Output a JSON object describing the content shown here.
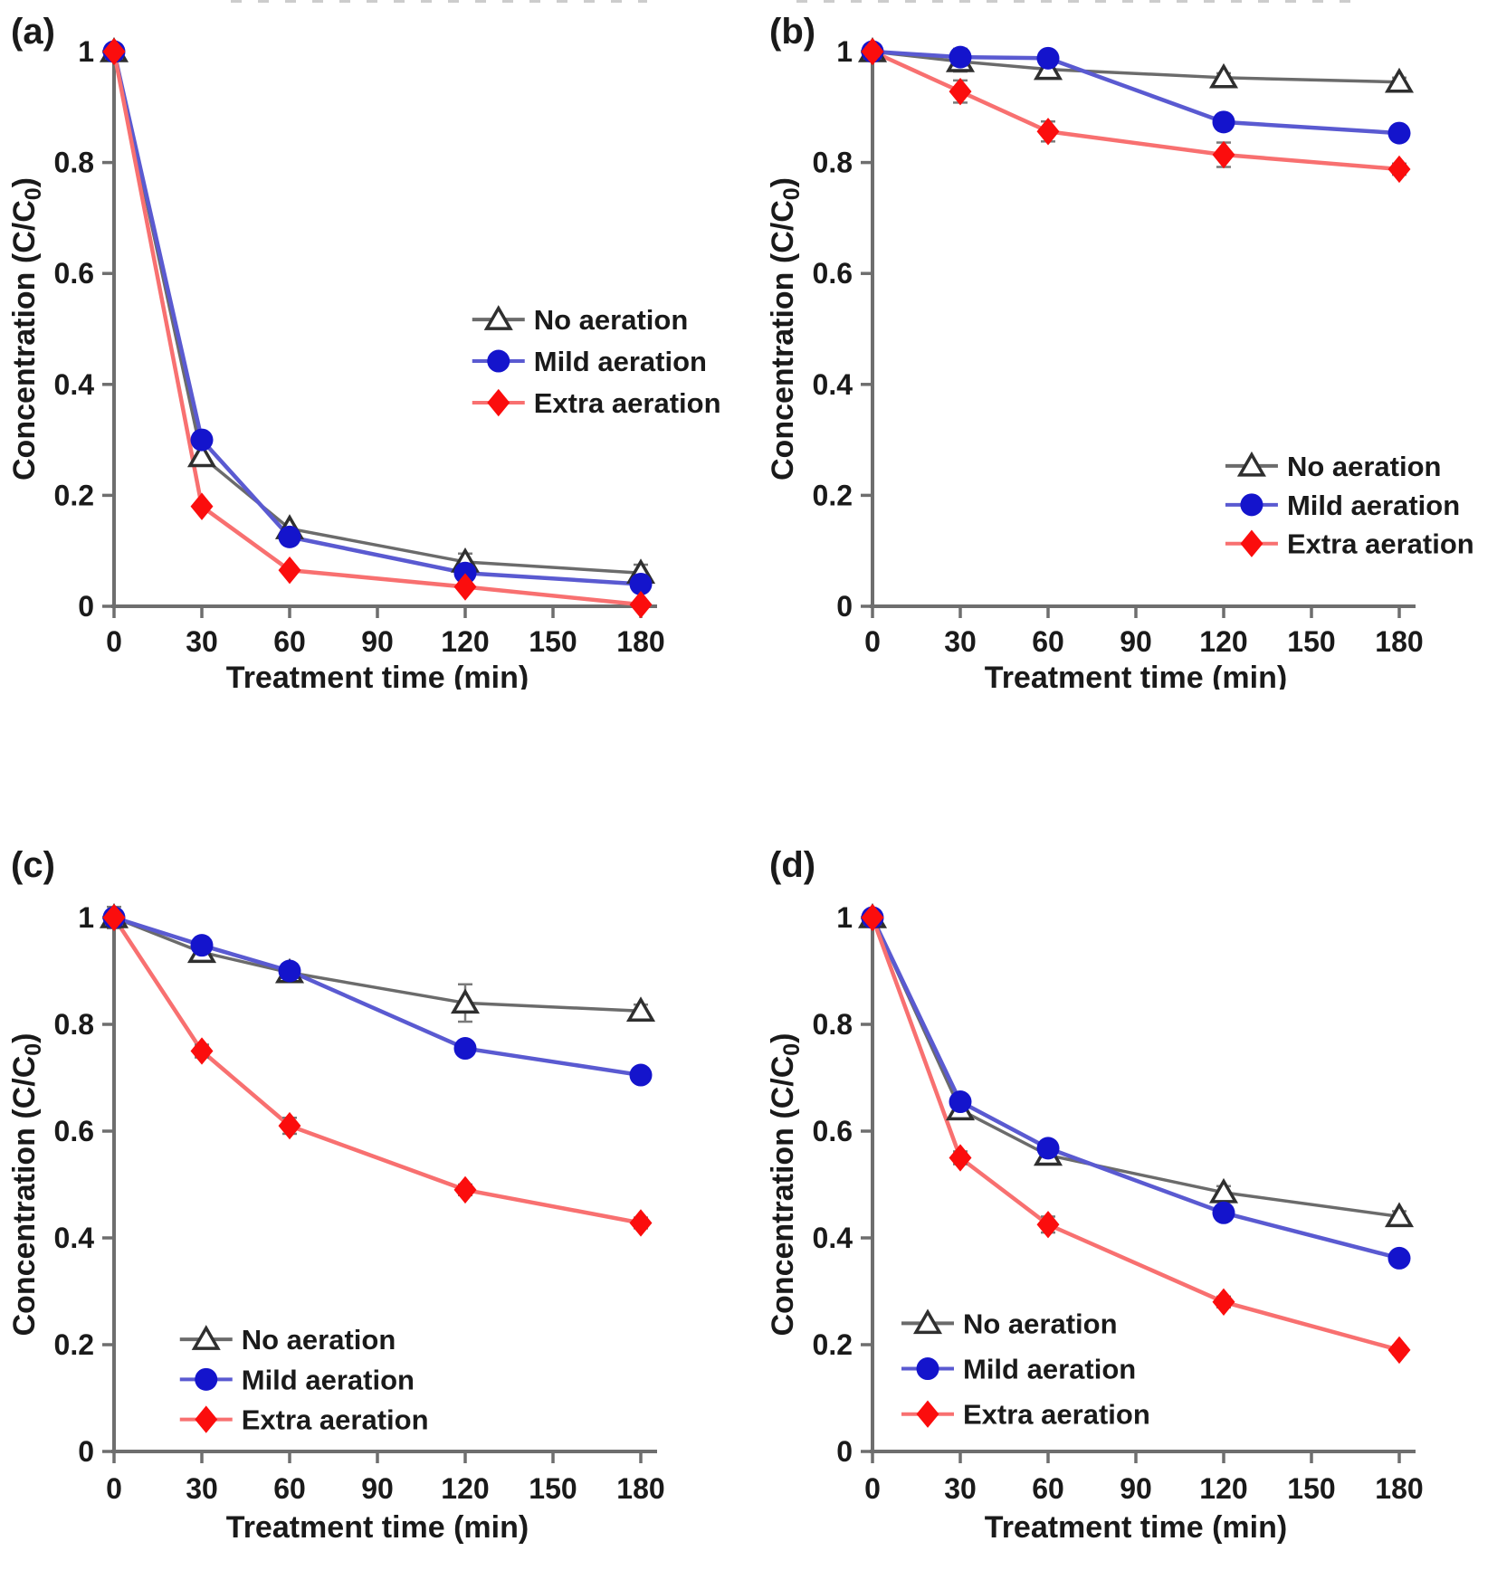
{
  "figure": {
    "background": "#ffffff",
    "text_color": "#1a1a1a",
    "axis_color": "#6e6e6e",
    "error_bar_color": "#7a7a7a",
    "series_styles": {
      "no_aeration": {
        "label": "No aeration",
        "line": "#6b6b6b",
        "line_width": 3.5,
        "marker": "triangle-open",
        "marker_fill": "#ffffff",
        "marker_stroke": "#2f2f2f"
      },
      "mild_aeration": {
        "label": "Mild aeration",
        "line": "#5a5ad1",
        "line_width": 4.5,
        "marker": "circle",
        "marker_fill": "#1414cc",
        "marker_stroke": "#1414cc"
      },
      "extra_aeration": {
        "label": "Extra aeration",
        "line": "#f87070",
        "line_width": 4.5,
        "marker": "diamond",
        "marker_fill": "#fb0d0d",
        "marker_stroke": "#fb0d0d"
      }
    }
  },
  "chart_data": [
    {
      "id": "a",
      "panel_label": "(a)",
      "type": "line",
      "xlabel": "Treatment time (min)",
      "ylabel": "Concentration (C/C0)",
      "xlim": [
        0,
        180
      ],
      "ylim": [
        0,
        1
      ],
      "xticks": [
        0,
        30,
        60,
        90,
        120,
        150,
        180
      ],
      "yticks": [
        0,
        0.2,
        0.4,
        0.6,
        0.8,
        1
      ],
      "x": [
        0,
        30,
        60,
        120,
        180
      ],
      "legend": {
        "position": "middle-right",
        "x_frac": 0.68,
        "row_fracs": [
          0.483,
          0.558,
          0.633
        ]
      },
      "series": [
        {
          "key": "no_aeration",
          "name": "No aeration",
          "values": [
            1,
            0.27,
            0.14,
            0.08,
            0.06
          ],
          "err": [
            0,
            0,
            0,
            0.015,
            0.015
          ]
        },
        {
          "key": "mild_aeration",
          "name": "Mild aeration",
          "values": [
            1,
            0.3,
            0.125,
            0.06,
            0.04
          ],
          "err": [
            0,
            0,
            0,
            0,
            0
          ]
        },
        {
          "key": "extra_aeration",
          "name": "Extra aeration",
          "values": [
            1,
            0.18,
            0.065,
            0.035,
            0.003
          ],
          "err": [
            0,
            0,
            0,
            0,
            0
          ]
        }
      ]
    },
    {
      "id": "b",
      "panel_label": "(b)",
      "type": "line",
      "xlabel": "Treatment time (min)",
      "ylabel": "Concentration (C/C0)",
      "xlim": [
        0,
        180
      ],
      "ylim": [
        0,
        1
      ],
      "xticks": [
        0,
        30,
        60,
        90,
        120,
        150,
        180
      ],
      "yticks": [
        0,
        0.2,
        0.4,
        0.6,
        0.8,
        1
      ],
      "x": [
        0,
        30,
        60,
        120,
        180
      ],
      "legend": {
        "position": "bottom-right",
        "x_frac": 0.67,
        "row_fracs": [
          0.747,
          0.817,
          0.887
        ]
      },
      "series": [
        {
          "key": "no_aeration",
          "name": "No aeration",
          "values": [
            1,
            0.982,
            0.968,
            0.953,
            0.945
          ],
          "err": [
            0.012,
            0.018,
            0.012,
            0.008,
            0.008
          ]
        },
        {
          "key": "mild_aeration",
          "name": "Mild aeration",
          "values": [
            1,
            0.99,
            0.988,
            0.873,
            0.853
          ],
          "err": [
            0.008,
            0.015,
            0.01,
            0.012,
            0.008
          ]
        },
        {
          "key": "extra_aeration",
          "name": "Extra aeration",
          "values": [
            1,
            0.928,
            0.856,
            0.814,
            0.788
          ],
          "err": [
            0.008,
            0.02,
            0.018,
            0.022,
            0.01
          ]
        }
      ]
    },
    {
      "id": "c",
      "panel_label": "(c)",
      "type": "line",
      "xlabel": "Treatment time (min)",
      "ylabel": "Concentration (C/C0)",
      "xlim": [
        0,
        180
      ],
      "ylim": [
        0,
        1
      ],
      "xticks": [
        0,
        30,
        60,
        90,
        120,
        150,
        180
      ],
      "yticks": [
        0,
        0.2,
        0.4,
        0.6,
        0.8,
        1
      ],
      "x": [
        0,
        30,
        60,
        120,
        180
      ],
      "legend": {
        "position": "bottom-left",
        "x_frac": 0.125,
        "row_fracs": [
          0.79,
          0.865,
          0.94
        ]
      },
      "series": [
        {
          "key": "no_aeration",
          "name": "No aeration",
          "values": [
            1,
            0.935,
            0.897,
            0.84,
            0.825
          ],
          "err": [
            0.02,
            0.012,
            0.01,
            0.035,
            0.012
          ]
        },
        {
          "key": "mild_aeration",
          "name": "Mild aeration",
          "values": [
            1,
            0.948,
            0.9,
            0.755,
            0.705
          ],
          "err": [
            0,
            0.01,
            0.01,
            0.012,
            0.01
          ]
        },
        {
          "key": "extra_aeration",
          "name": "Extra aeration",
          "values": [
            1,
            0.75,
            0.61,
            0.49,
            0.428
          ],
          "err": [
            0,
            0.012,
            0.015,
            0.01,
            0.01
          ]
        }
      ]
    },
    {
      "id": "d",
      "panel_label": "(d)",
      "type": "line",
      "xlabel": "Treatment time (min)",
      "ylabel": "Concentration (C/C0)",
      "xlim": [
        0,
        180
      ],
      "ylim": [
        0,
        1
      ],
      "xticks": [
        0,
        30,
        60,
        90,
        120,
        150,
        180
      ],
      "yticks": [
        0,
        0.2,
        0.4,
        0.6,
        0.8,
        1
      ],
      "x": [
        0,
        30,
        60,
        120,
        180
      ],
      "legend": {
        "position": "bottom-left",
        "x_frac": 0.055,
        "row_fracs": [
          0.76,
          0.845,
          0.93
        ]
      },
      "series": [
        {
          "key": "no_aeration",
          "name": "No aeration",
          "values": [
            1,
            0.64,
            0.555,
            0.485,
            0.44
          ],
          "err": [
            0,
            0.015,
            0.015,
            0.012,
            0.01
          ]
        },
        {
          "key": "mild_aeration",
          "name": "Mild aeration",
          "values": [
            1,
            0.655,
            0.568,
            0.447,
            0.362
          ],
          "err": [
            0,
            0.01,
            0.012,
            0.01,
            0.008
          ]
        },
        {
          "key": "extra_aeration",
          "name": "Extra aeration",
          "values": [
            1,
            0.55,
            0.425,
            0.28,
            0.19
          ],
          "err": [
            0,
            0.012,
            0.015,
            0.01,
            0.008
          ]
        }
      ]
    }
  ]
}
